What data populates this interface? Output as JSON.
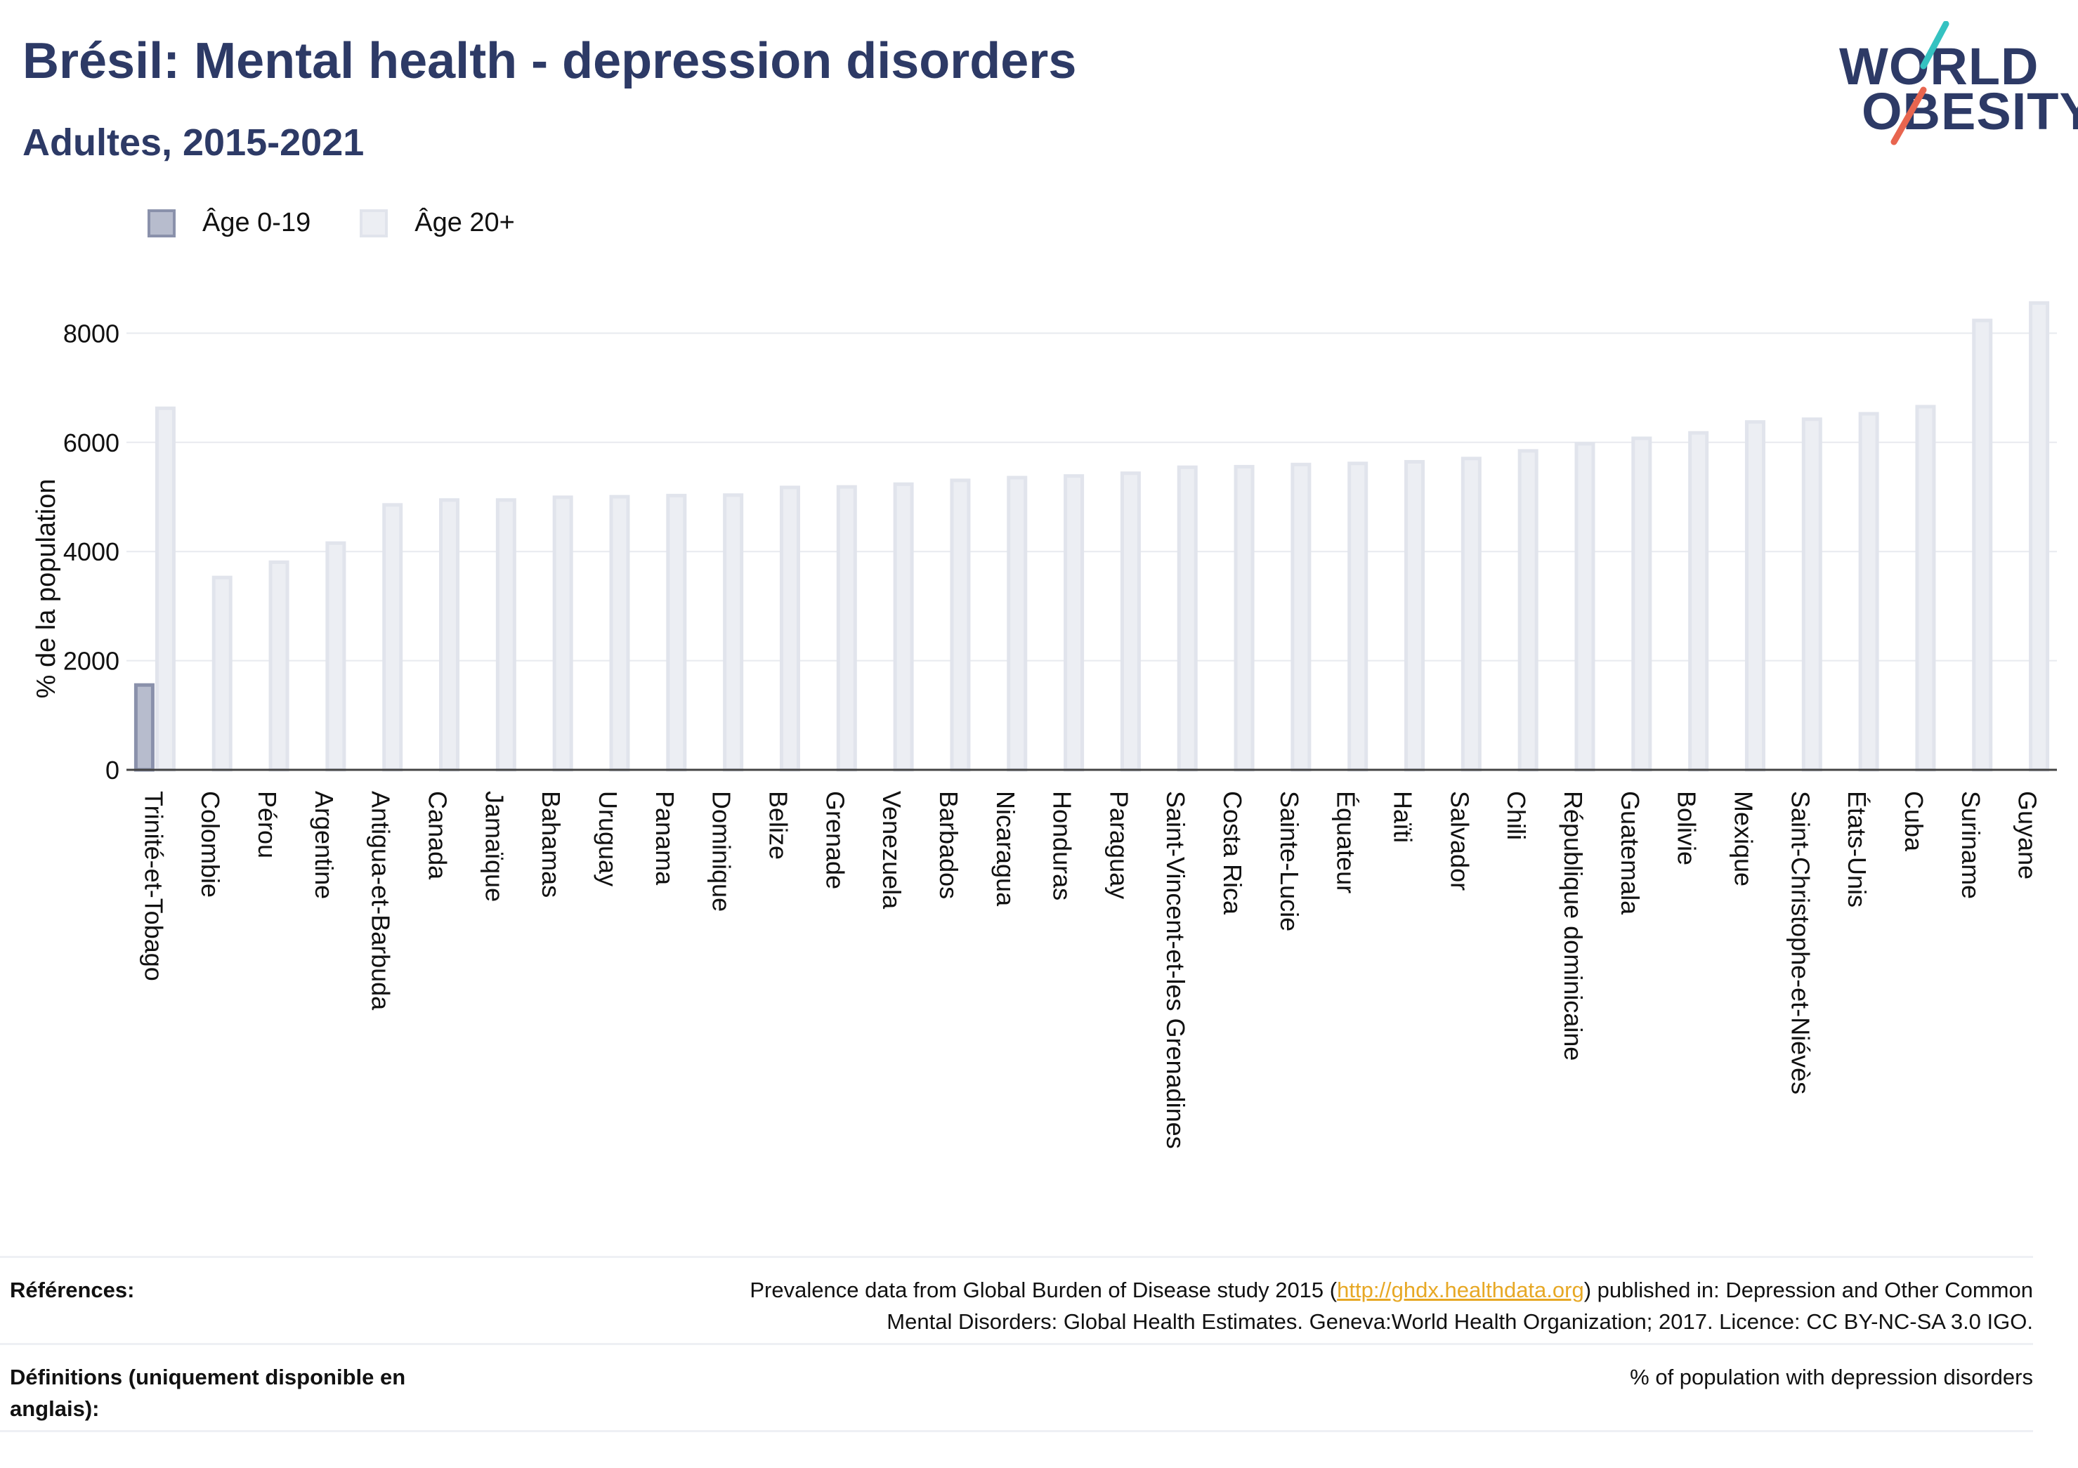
{
  "header": {
    "title": "Brésil: Mental health - depression disorders",
    "subtitle": "Adultes, 2015-2021"
  },
  "logo": {
    "line1": "WORLD",
    "line2": "OBESITY",
    "slash_colors": [
      "#35c2c1",
      "#e8654f"
    ]
  },
  "legend": {
    "items": [
      {
        "label": "Âge 0-19",
        "color": "#b7bccd"
      },
      {
        "label": "Âge 20+",
        "color": "#eceef3"
      }
    ]
  },
  "colors": {
    "age_0_19_fill": "#b7bccd",
    "age_0_19_stroke": "#8a91ab",
    "age_20_fill": "#eceef3",
    "age_20_stroke": "#e1e4ec",
    "text_primary": "#2d3a66",
    "link": "#e7a825"
  },
  "chart_data": {
    "type": "bar",
    "ylabel": "% de la population",
    "xlabel": "",
    "ylim": [
      0,
      8700
    ],
    "yticks": [
      0,
      2000,
      4000,
      6000,
      8000
    ],
    "grid": true,
    "legend_position": "top-left",
    "categories": [
      "Trinité-et-Tobago",
      "Colombie",
      "Pérou",
      "Argentine",
      "Antigua-et-Barbuda",
      "Canada",
      "Jamaïque",
      "Bahamas",
      "Uruguay",
      "Panama",
      "Dominique",
      "Belize",
      "Grenade",
      "Venezuela",
      "Barbados",
      "Nicaragua",
      "Honduras",
      "Paraguay",
      "Saint-Vincent-et-les Grenadines",
      "Costa Rica",
      "Sainte-Lucie",
      "Équateur",
      "Haïti",
      "Salvador",
      "Chili",
      "République dominicaine",
      "Guatemala",
      "Bolivie",
      "Mexique",
      "Saint-Christophe-et-Niévès",
      "États-Unis",
      "Cuba",
      "Suriname",
      "Guyane"
    ],
    "series": [
      {
        "name": "Âge 0-19",
        "values": [
          1580,
          null,
          null,
          null,
          null,
          null,
          null,
          null,
          null,
          null,
          null,
          null,
          null,
          null,
          null,
          null,
          null,
          null,
          null,
          null,
          null,
          null,
          null,
          null,
          null,
          null,
          null,
          null,
          null,
          null,
          null,
          null,
          null,
          null
        ]
      },
      {
        "name": "Âge 20+",
        "values": [
          6650,
          3550,
          3830,
          4180,
          4880,
          4970,
          4970,
          5020,
          5030,
          5050,
          5060,
          5200,
          5210,
          5260,
          5330,
          5380,
          5410,
          5460,
          5570,
          5580,
          5620,
          5640,
          5670,
          5730,
          5870,
          6000,
          6100,
          6200,
          6400,
          6450,
          6550,
          6680,
          8260,
          8580
        ]
      }
    ]
  },
  "footer": {
    "references_label": "Références:",
    "references_text_before": "Prevalence data from Global Burden of Disease study 2015 (",
    "references_link": "http://ghdx.healthdata.org",
    "references_text_after": ") published in: Depression and Other Common",
    "references_line2": "Mental Disorders: Global Health Estimates. Geneva:World Health Organization; 2017. Licence: CC BY-NC-SA 3.0 IGO.",
    "definitions_label_line1": "Définitions (uniquement disponible en",
    "definitions_label_line2": "anglais):",
    "definitions_text": "% of population with depression disorders"
  }
}
